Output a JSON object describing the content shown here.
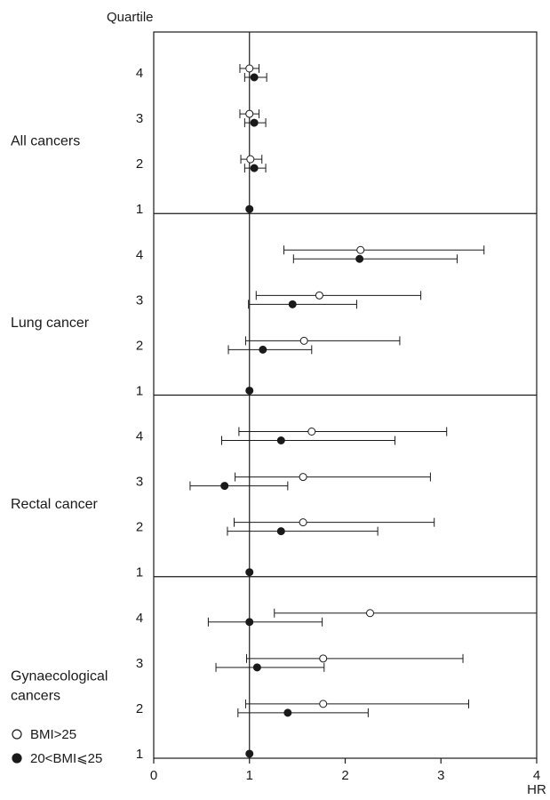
{
  "chart_data": {
    "type": "forest",
    "yaxis_title": "Quartile",
    "xlabel": "HR",
    "xlim": [
      0,
      4
    ],
    "x_ticks": [
      "0",
      "1",
      "2",
      "3",
      "4"
    ],
    "reference_line": 1,
    "quartile_labels": [
      "4",
      "3",
      "2",
      "1"
    ],
    "legend": [
      {
        "name": "BMI>25",
        "marker": "open-circle"
      },
      {
        "name": "20<BMI⩽25",
        "marker": "filled-circle"
      }
    ],
    "panels": [
      {
        "label_lines": [
          "All cancers"
        ],
        "rows": [
          {
            "quartile": "4",
            "open": {
              "hr": 1.0,
              "lo": 0.9,
              "hi": 1.1
            },
            "filled": {
              "hr": 1.05,
              "lo": 0.95,
              "hi": 1.18
            }
          },
          {
            "quartile": "3",
            "open": {
              "hr": 1.0,
              "lo": 0.9,
              "hi": 1.1
            },
            "filled": {
              "hr": 1.05,
              "lo": 0.95,
              "hi": 1.17
            }
          },
          {
            "quartile": "2",
            "open": {
              "hr": 1.01,
              "lo": 0.91,
              "hi": 1.13
            },
            "filled": {
              "hr": 1.05,
              "lo": 0.95,
              "hi": 1.17
            }
          },
          {
            "quartile": "1",
            "open": null,
            "filled": {
              "hr": 1.0,
              "lo": 1.0,
              "hi": 1.0
            }
          }
        ]
      },
      {
        "label_lines": [
          "Lung cancer"
        ],
        "rows": [
          {
            "quartile": "4",
            "open": {
              "hr": 2.16,
              "lo": 1.36,
              "hi": 3.45
            },
            "filled": {
              "hr": 2.15,
              "lo": 1.46,
              "hi": 3.17
            }
          },
          {
            "quartile": "3",
            "open": {
              "hr": 1.73,
              "lo": 1.07,
              "hi": 2.79
            },
            "filled": {
              "hr": 1.45,
              "lo": 0.99,
              "hi": 2.12
            }
          },
          {
            "quartile": "2",
            "open": {
              "hr": 1.57,
              "lo": 0.96,
              "hi": 2.57
            },
            "filled": {
              "hr": 1.14,
              "lo": 0.78,
              "hi": 1.65
            }
          },
          {
            "quartile": "1",
            "open": null,
            "filled": {
              "hr": 1.0,
              "lo": 1.0,
              "hi": 1.0
            }
          }
        ]
      },
      {
        "label_lines": [
          "Rectal cancer"
        ],
        "rows": [
          {
            "quartile": "4",
            "open": {
              "hr": 1.65,
              "lo": 0.89,
              "hi": 3.06
            },
            "filled": {
              "hr": 1.33,
              "lo": 0.71,
              "hi": 2.52
            }
          },
          {
            "quartile": "3",
            "open": {
              "hr": 1.56,
              "lo": 0.85,
              "hi": 2.89
            },
            "filled": {
              "hr": 0.74,
              "lo": 0.38,
              "hi": 1.4
            }
          },
          {
            "quartile": "2",
            "open": {
              "hr": 1.56,
              "lo": 0.84,
              "hi": 2.93
            },
            "filled": {
              "hr": 1.33,
              "lo": 0.77,
              "hi": 2.34
            }
          },
          {
            "quartile": "1",
            "open": null,
            "filled": {
              "hr": 1.0,
              "lo": 1.0,
              "hi": 1.0
            }
          }
        ]
      },
      {
        "label_lines": [
          "Gynaecological",
          "cancers"
        ],
        "rows": [
          {
            "quartile": "4",
            "open": {
              "hr": 2.26,
              "lo": 1.26,
              "hi": 4.0
            },
            "filled": {
              "hr": 1.0,
              "lo": 0.57,
              "hi": 1.76
            }
          },
          {
            "quartile": "3",
            "open": {
              "hr": 1.77,
              "lo": 0.97,
              "hi": 3.23
            },
            "filled": {
              "hr": 1.08,
              "lo": 0.65,
              "hi": 1.78
            }
          },
          {
            "quartile": "2",
            "open": {
              "hr": 1.77,
              "lo": 0.96,
              "hi": 3.29
            },
            "filled": {
              "hr": 1.4,
              "lo": 0.88,
              "hi": 2.24
            }
          },
          {
            "quartile": "1",
            "open": null,
            "filled": {
              "hr": 1.0,
              "lo": 1.0,
              "hi": 1.0
            }
          }
        ]
      }
    ]
  }
}
